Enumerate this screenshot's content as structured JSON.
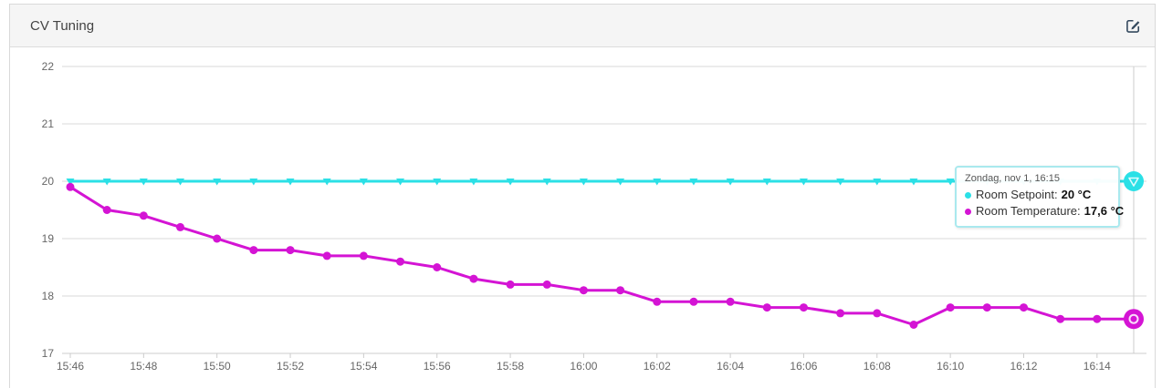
{
  "panel": {
    "title": "CV Tuning"
  },
  "icons": {
    "edit": "edit-compose-icon"
  },
  "tooltip": {
    "header": "Zondag, nov 1, 16:15",
    "rows": [
      {
        "label": "Room Setpoint:",
        "value": "20 °C",
        "color": "#2be0e6"
      },
      {
        "label": "Room Temperature:",
        "value": "17,6 °C",
        "color": "#d414d4"
      }
    ]
  },
  "chart_data": {
    "type": "line",
    "title": "",
    "xlabel": "",
    "ylabel": "",
    "ylim": [
      17,
      22
    ],
    "yticks": [
      17,
      18,
      19,
      20,
      21,
      22
    ],
    "grid": "horizontal",
    "legend_position": "none",
    "x": [
      "15:46",
      "15:47",
      "15:48",
      "15:49",
      "15:50",
      "15:51",
      "15:52",
      "15:53",
      "15:54",
      "15:55",
      "15:56",
      "15:57",
      "15:58",
      "15:59",
      "16:00",
      "16:01",
      "16:02",
      "16:03",
      "16:04",
      "16:05",
      "16:06",
      "16:07",
      "16:08",
      "16:09",
      "16:10",
      "16:11",
      "16:12",
      "16:13",
      "16:14",
      "16:15"
    ],
    "xtick_labels": [
      "15:46",
      "15:48",
      "15:50",
      "15:52",
      "15:54",
      "15:56",
      "15:58",
      "16:00",
      "16:02",
      "16:04",
      "16:06",
      "16:08",
      "16:10",
      "16:12",
      "16:14"
    ],
    "series": [
      {
        "name": "Room Setpoint",
        "color": "#2be0e6",
        "marker": "triangle-down",
        "values": [
          20,
          20,
          20,
          20,
          20,
          20,
          20,
          20,
          20,
          20,
          20,
          20,
          20,
          20,
          20,
          20,
          20,
          20,
          20,
          20,
          20,
          20,
          20,
          20,
          20,
          20,
          20,
          20,
          20,
          20
        ]
      },
      {
        "name": "Room Temperature",
        "color": "#d414d4",
        "marker": "circle",
        "values": [
          19.9,
          19.5,
          19.4,
          19.2,
          19.0,
          18.8,
          18.8,
          18.7,
          18.7,
          18.6,
          18.5,
          18.3,
          18.2,
          18.2,
          18.1,
          18.1,
          17.9,
          17.9,
          17.9,
          17.8,
          17.8,
          17.7,
          17.7,
          17.5,
          17.8,
          17.8,
          17.8,
          17.6,
          17.6,
          17.6
        ]
      }
    ],
    "hover_index": 29,
    "crosshair": true,
    "colors": {
      "gridline": "#d9d9d9",
      "axis_line": "#cccccc",
      "tick": "#cccccc",
      "crosshair": "#cccccc",
      "axis_label": "#666666",
      "halo_inner": "#ffffff"
    }
  }
}
